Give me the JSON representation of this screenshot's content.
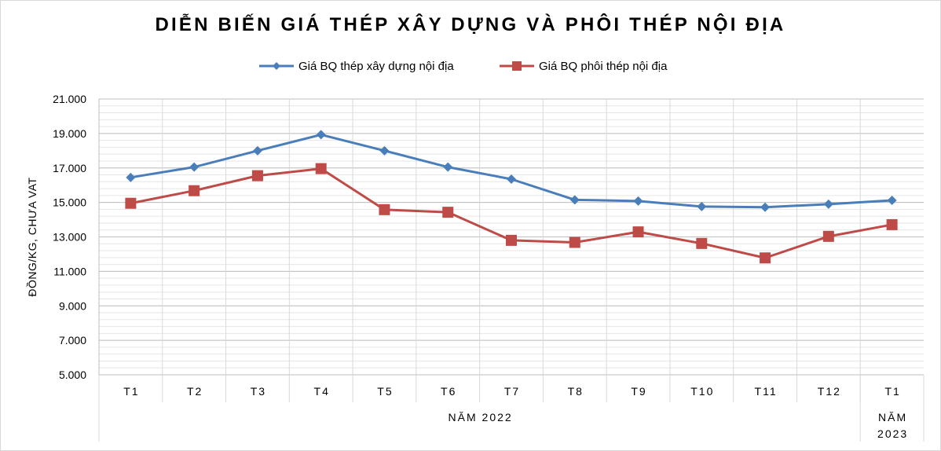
{
  "chart_data": {
    "type": "line",
    "title": "DIỄN BIẾN GIÁ THÉP XÂY DỰNG VÀ PHÔI THÉP NỘI ĐỊA",
    "ylabel": "ĐỒNG/KG, CHƯA VAT",
    "ylim": [
      5000,
      21000
    ],
    "yticks": [
      "5.000",
      "7.000",
      "9.000",
      "11.000",
      "13.000",
      "15.000",
      "17.000",
      "19.000",
      "21.000"
    ],
    "ytick_values": [
      5000,
      7000,
      9000,
      11000,
      13000,
      15000,
      17000,
      19000,
      21000
    ],
    "categories": [
      "T1",
      "T2",
      "T3",
      "T4",
      "T5",
      "T6",
      "T7",
      "T8",
      "T9",
      "T10",
      "T11",
      "T12",
      "T1"
    ],
    "groups": [
      {
        "label": "NĂM 2022",
        "count": 12
      },
      {
        "label_lines": [
          "NĂM",
          "2023"
        ],
        "count": 1
      }
    ],
    "grid": true,
    "legend_position": "top",
    "series": [
      {
        "name": "Giá BQ thép xây dựng nội địa",
        "color": "#4a7ebb",
        "marker": "diamond",
        "values": [
          16450,
          17050,
          18000,
          18930,
          18000,
          17050,
          16350,
          15150,
          15080,
          14760,
          14720,
          14900,
          15120
        ]
      },
      {
        "name": "Giá BQ phôi thép nội địa",
        "color": "#be4b48",
        "marker": "square",
        "values": [
          14950,
          15680,
          16550,
          16960,
          14580,
          14430,
          12800,
          12680,
          13290,
          12620,
          11780,
          13030,
          13710
        ]
      }
    ]
  }
}
